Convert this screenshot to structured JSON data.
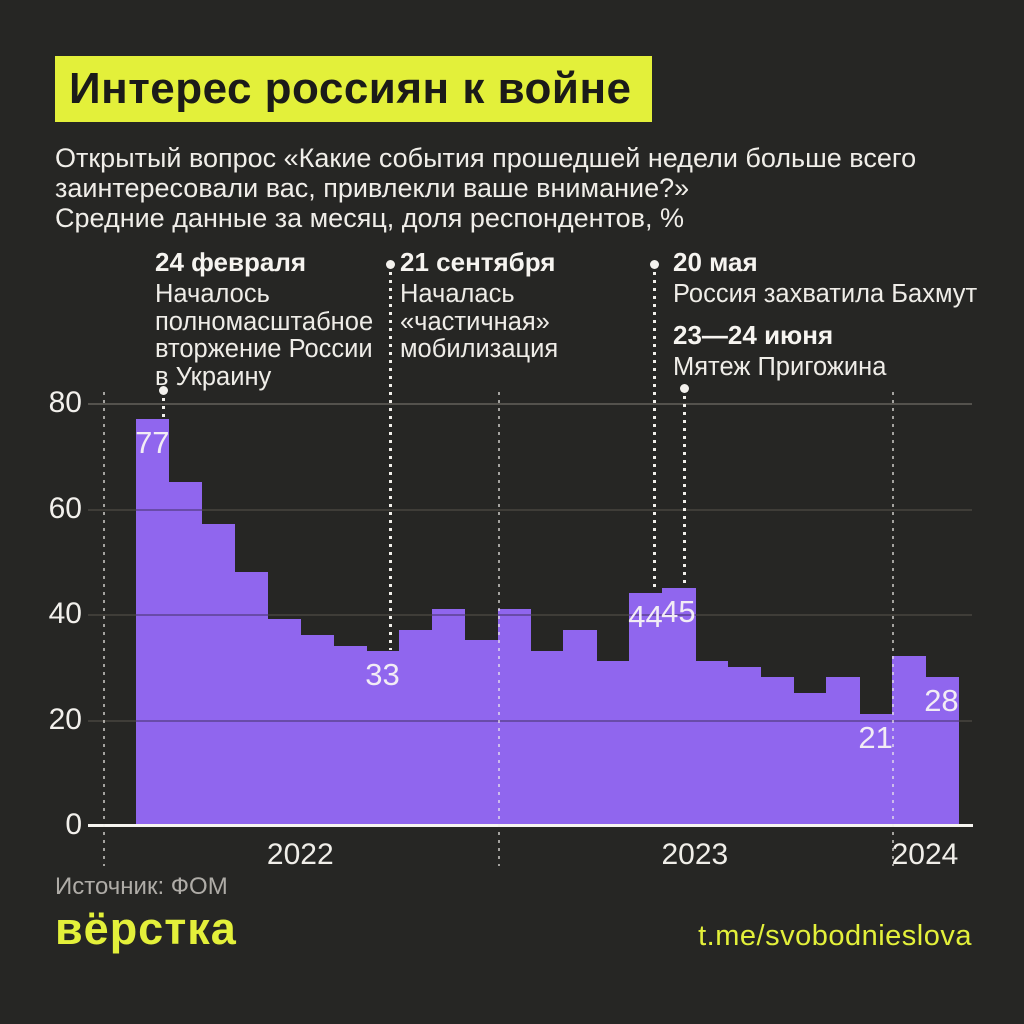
{
  "header": {
    "title": "Интерес россиян к войне",
    "subtitle_lines": [
      "Открытый вопрос «Какие события прошедшей недели больше всего",
      "заинтересовали вас, привлекли ваше внимание?»",
      "Средние данные за месяц, доля респондентов, %"
    ]
  },
  "annotations": [
    {
      "date": "24 февраля",
      "body_lines": [
        "Началось",
        "полномасштабное",
        "вторжение России",
        "в Украину"
      ],
      "points_to_month": "2022-02"
    },
    {
      "date": "21 сентября",
      "body_lines": [
        "Началась",
        "«частичная»",
        "мобилизация"
      ],
      "points_to_month": "2022-09"
    },
    {
      "date": "20 мая",
      "body_lines": [
        "Россия захватила Бахмут"
      ],
      "points_to_month": "2023-05"
    },
    {
      "date": "23—24 июня",
      "body_lines": [
        "Мятеж Пригожина"
      ],
      "points_to_month": "2023-06"
    }
  ],
  "chart_data": {
    "type": "bar",
    "title": "Интерес россиян к войне",
    "ylabel": "доля респондентов, %",
    "ylim": [
      0,
      80
    ],
    "yticks": [
      0,
      20,
      40,
      60,
      80
    ],
    "grid": true,
    "x_period": {
      "start": "2022-02",
      "end": "2024-02",
      "step": "month"
    },
    "x_year_labels": [
      "2022",
      "2023",
      "2024"
    ],
    "values": [
      77,
      65,
      57,
      48,
      39,
      36,
      34,
      33,
      37,
      41,
      35,
      41,
      33,
      37,
      31,
      44,
      45,
      31,
      30,
      28,
      25,
      28,
      21,
      32,
      28
    ],
    "point_labels": [
      {
        "month": "2022-02",
        "value": 77
      },
      {
        "month": "2022-09",
        "value": 33
      },
      {
        "month": "2023-05",
        "value": 44
      },
      {
        "month": "2023-06",
        "value": 45
      },
      {
        "month": "2023-12",
        "value": 21
      },
      {
        "month": "2024-02",
        "value": 28
      }
    ],
    "bar_color": "#9066EE"
  },
  "source": "Источник: ФОМ",
  "footer": {
    "logo": "вёрстка",
    "link": "t.me/svobodnieslova"
  },
  "colors": {
    "background": "#262624",
    "accent_yellow": "#E3F03A",
    "bar_purple": "#9066EE",
    "text": "#F4F2EE",
    "grid": "#54524D",
    "muted": "#AFACA7"
  }
}
